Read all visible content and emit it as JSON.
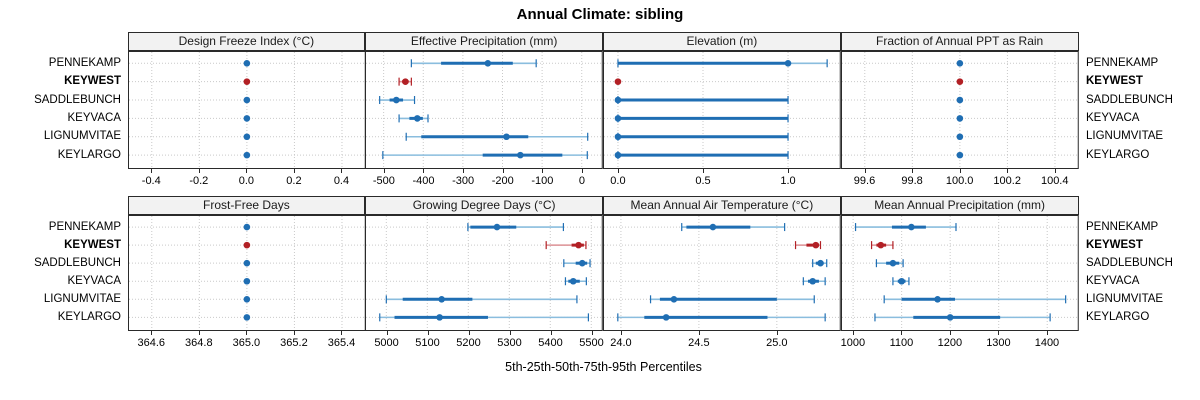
{
  "title": "Annual Climate: sibling",
  "footer": "5th-25th-50th-75th-95th Percentiles",
  "stations": [
    "PENNEKAMP",
    "KEYWEST",
    "SADDLEBUNCH",
    "KEYVACA",
    "LIGNUMVITAE",
    "KEYLARGO"
  ],
  "highlight_station": "KEYWEST",
  "colors": {
    "blue": "#1f6eb3",
    "blue_light": "#8abdde",
    "red": "#b22025",
    "red_light": "#dc9094",
    "grid": "#c9c9c9",
    "header_bg": "#f2f2f2",
    "border": "#2a2a2a"
  },
  "chart_data": [
    {
      "type": "scatter",
      "id": "design-freeze-index",
      "label": "Design Freeze Index (°C)",
      "row": 0,
      "col": 0,
      "xmin": -0.5,
      "xmax": 0.5,
      "ticks": [
        {
          "label": "-0.4",
          "v": -0.4
        },
        {
          "label": "-0.2",
          "v": -0.2
        },
        {
          "label": "0.0",
          "v": 0.0
        },
        {
          "label": "0.2",
          "v": 0.2
        },
        {
          "label": "0.4",
          "v": 0.4
        }
      ],
      "values": [
        [
          0.0
        ],
        [
          0.0
        ],
        [
          0.0
        ],
        [
          0.0
        ],
        [
          0.0
        ],
        [
          0.0
        ]
      ]
    },
    {
      "type": "scatter",
      "id": "effective-precipitation",
      "label": "Effective Precipitation (mm)",
      "row": 0,
      "col": 1,
      "xmin": -547,
      "xmax": 53,
      "ticks": [
        {
          "label": "-500",
          "v": -500
        },
        {
          "label": "-400",
          "v": -400
        },
        {
          "label": "-300",
          "v": -300
        },
        {
          "label": "-200",
          "v": -200
        },
        {
          "label": "-100",
          "v": -100
        },
        {
          "label": "0",
          "v": 0
        }
      ],
      "values": [
        [
          -430,
          -355,
          -237,
          -174,
          -115
        ],
        [
          -461,
          -453,
          -445,
          -437,
          -430
        ],
        [
          -510,
          -485,
          -468,
          -451,
          -422
        ],
        [
          -461,
          -435,
          -415,
          -401,
          -388
        ],
        [
          -443,
          -405,
          -190,
          -135,
          15
        ],
        [
          -502,
          -250,
          -155,
          -49,
          14
        ]
      ]
    },
    {
      "type": "scatter",
      "id": "elevation",
      "label": "Elevation (m)",
      "row": 0,
      "col": 2,
      "xmin": -0.088,
      "xmax": 1.31,
      "ticks": [
        {
          "label": "0.0",
          "v": 0.0
        },
        {
          "label": "0.5",
          "v": 0.5
        },
        {
          "label": "1.0",
          "v": 1.0
        }
      ],
      "values": [
        [
          0,
          0,
          1.0,
          1.0,
          1.23
        ],
        [
          0
        ],
        [
          0,
          0,
          0,
          1.0,
          1.0
        ],
        [
          0,
          0,
          0,
          1.0,
          1.0
        ],
        [
          0,
          0,
          0,
          1.0,
          1.0
        ],
        [
          0,
          0,
          0,
          1.0,
          1.0
        ]
      ]
    },
    {
      "type": "scatter",
      "id": "fraction-annual-ppt-rain",
      "label": "Fraction of Annual PPT as Rain",
      "row": 0,
      "col": 3,
      "xmin": 99.5,
      "xmax": 100.5,
      "ticks": [
        {
          "label": "99.6",
          "v": 99.6
        },
        {
          "label": "99.8",
          "v": 99.8
        },
        {
          "label": "100.0",
          "v": 100.0
        },
        {
          "label": "100.2",
          "v": 100.2
        },
        {
          "label": "100.4",
          "v": 100.4
        }
      ],
      "values": [
        [
          100.0
        ],
        [
          100.0
        ],
        [
          100.0
        ],
        [
          100.0
        ],
        [
          100.0
        ],
        [
          100.0
        ]
      ]
    },
    {
      "type": "scatter",
      "id": "frost-free-days",
      "label": "Frost-Free Days",
      "row": 1,
      "col": 0,
      "xmin": 364.5,
      "xmax": 365.5,
      "ticks": [
        {
          "label": "364.6",
          "v": 364.6
        },
        {
          "label": "364.8",
          "v": 364.8
        },
        {
          "label": "365.0",
          "v": 365.0
        },
        {
          "label": "365.2",
          "v": 365.2
        },
        {
          "label": "365.4",
          "v": 365.4
        }
      ],
      "values": [
        [
          365.0
        ],
        [
          365.0
        ],
        [
          365.0
        ],
        [
          365.0
        ],
        [
          365.0
        ],
        [
          365.0
        ]
      ]
    },
    {
      "type": "scatter",
      "id": "growing-degree-days",
      "label": "Growing Degree Days (°C)",
      "row": 1,
      "col": 1,
      "xmin": 4948,
      "xmax": 5528,
      "ticks": [
        {
          "label": "5000",
          "v": 5000
        },
        {
          "label": "5100",
          "v": 5100
        },
        {
          "label": "5200",
          "v": 5200
        },
        {
          "label": "5300",
          "v": 5300
        },
        {
          "label": "5400",
          "v": 5400
        },
        {
          "label": "5500",
          "v": 5500
        }
      ],
      "values": [
        [
          5199,
          5205,
          5270,
          5317,
          5432
        ],
        [
          5390,
          5452,
          5469,
          5482,
          5487
        ],
        [
          5433,
          5462,
          5478,
          5490,
          5497
        ],
        [
          5437,
          5444,
          5456,
          5472,
          5488
        ],
        [
          5000,
          5040,
          5135,
          5210,
          5465
        ],
        [
          4984,
          5020,
          5130,
          5248,
          5493
        ]
      ]
    },
    {
      "type": "scatter",
      "id": "mean-annual-air-temperature",
      "label": "Mean Annual Air Temperature (°C)",
      "row": 1,
      "col": 2,
      "xmin": 23.885,
      "xmax": 25.41,
      "ticks": [
        {
          "label": "24.0",
          "v": 24.0
        },
        {
          "label": "24.5",
          "v": 24.5
        },
        {
          "label": "25.0",
          "v": 25.0
        }
      ],
      "values": [
        [
          24.39,
          24.42,
          24.59,
          24.83,
          25.05
        ],
        [
          25.12,
          25.19,
          25.25,
          25.27,
          25.28
        ],
        [
          25.23,
          25.25,
          25.28,
          25.3,
          25.32
        ],
        [
          25.17,
          25.2,
          25.23,
          25.27,
          25.31
        ],
        [
          24.19,
          24.25,
          24.34,
          25.0,
          25.24
        ],
        [
          23.98,
          24.15,
          24.29,
          24.94,
          25.31
        ]
      ]
    },
    {
      "type": "scatter",
      "id": "mean-annual-precipitation",
      "label": "Mean Annual Precipitation (mm)",
      "row": 1,
      "col": 3,
      "xmin": 975,
      "xmax": 1465,
      "ticks": [
        {
          "label": "1000",
          "v": 1000
        },
        {
          "label": "1100",
          "v": 1100
        },
        {
          "label": "1200",
          "v": 1200
        },
        {
          "label": "1300",
          "v": 1300
        },
        {
          "label": "1400",
          "v": 1400
        }
      ],
      "values": [
        [
          1005,
          1080,
          1120,
          1150,
          1212
        ],
        [
          1038,
          1048,
          1057,
          1068,
          1082
        ],
        [
          1048,
          1068,
          1082,
          1095,
          1103
        ],
        [
          1082,
          1092,
          1100,
          1108,
          1115
        ],
        [
          1064,
          1100,
          1174,
          1210,
          1438
        ],
        [
          1045,
          1124,
          1200,
          1303,
          1406
        ]
      ]
    }
  ]
}
